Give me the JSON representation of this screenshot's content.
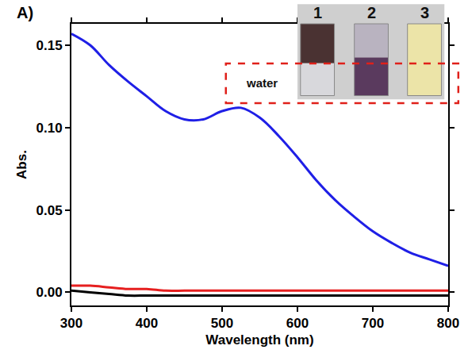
{
  "chart_data": {
    "type": "line",
    "panel_label": "A)",
    "x_label": "Wavelength (nm)",
    "y_label": "Abs.",
    "annotations": [
      "1",
      "2",
      "3",
      "water"
    ],
    "x": [
      300,
      325,
      350,
      375,
      400,
      425,
      450,
      475,
      500,
      525,
      550,
      575,
      600,
      625,
      650,
      675,
      700,
      725,
      750,
      775,
      800
    ],
    "series": [
      {
        "color": "#1f1fe6",
        "values": [
          0.157,
          0.15,
          0.138,
          0.128,
          0.119,
          0.11,
          0.105,
          0.105,
          0.11,
          0.112,
          0.106,
          0.095,
          0.082,
          0.068,
          0.056,
          0.046,
          0.037,
          0.03,
          0.024,
          0.02,
          0.016
        ]
      },
      {
        "color": "#e61f1f",
        "values": [
          0.004,
          0.004,
          0.003,
          0.002,
          0.002,
          0.001,
          0.001,
          0.001,
          0.001,
          0.001,
          0.001,
          0.001,
          0.001,
          0.001,
          0.001,
          0.001,
          0.001,
          0.001,
          0.001,
          0.001,
          0.001
        ]
      },
      {
        "color": "#000000",
        "values": [
          0.001,
          0.0,
          -0.001,
          -0.002,
          -0.002,
          -0.002,
          -0.002,
          -0.002,
          -0.002,
          -0.002,
          -0.002,
          -0.002,
          -0.002,
          -0.002,
          -0.002,
          -0.002,
          -0.002,
          -0.002,
          -0.002,
          -0.002,
          -0.002
        ]
      }
    ],
    "xlim": [
      300,
      800
    ],
    "xticks": [
      300,
      400,
      500,
      600,
      700,
      800
    ],
    "ylim": [
      -0.008,
      0.163
    ],
    "yticks": [
      {
        "value": 0,
        "label": "0.00"
      },
      {
        "value": 0.05,
        "label": "0.05"
      },
      {
        "value": 0.1,
        "label": "0.10"
      },
      {
        "value": 0.15,
        "label": "0.15"
      }
    ],
    "grid": false
  }
}
